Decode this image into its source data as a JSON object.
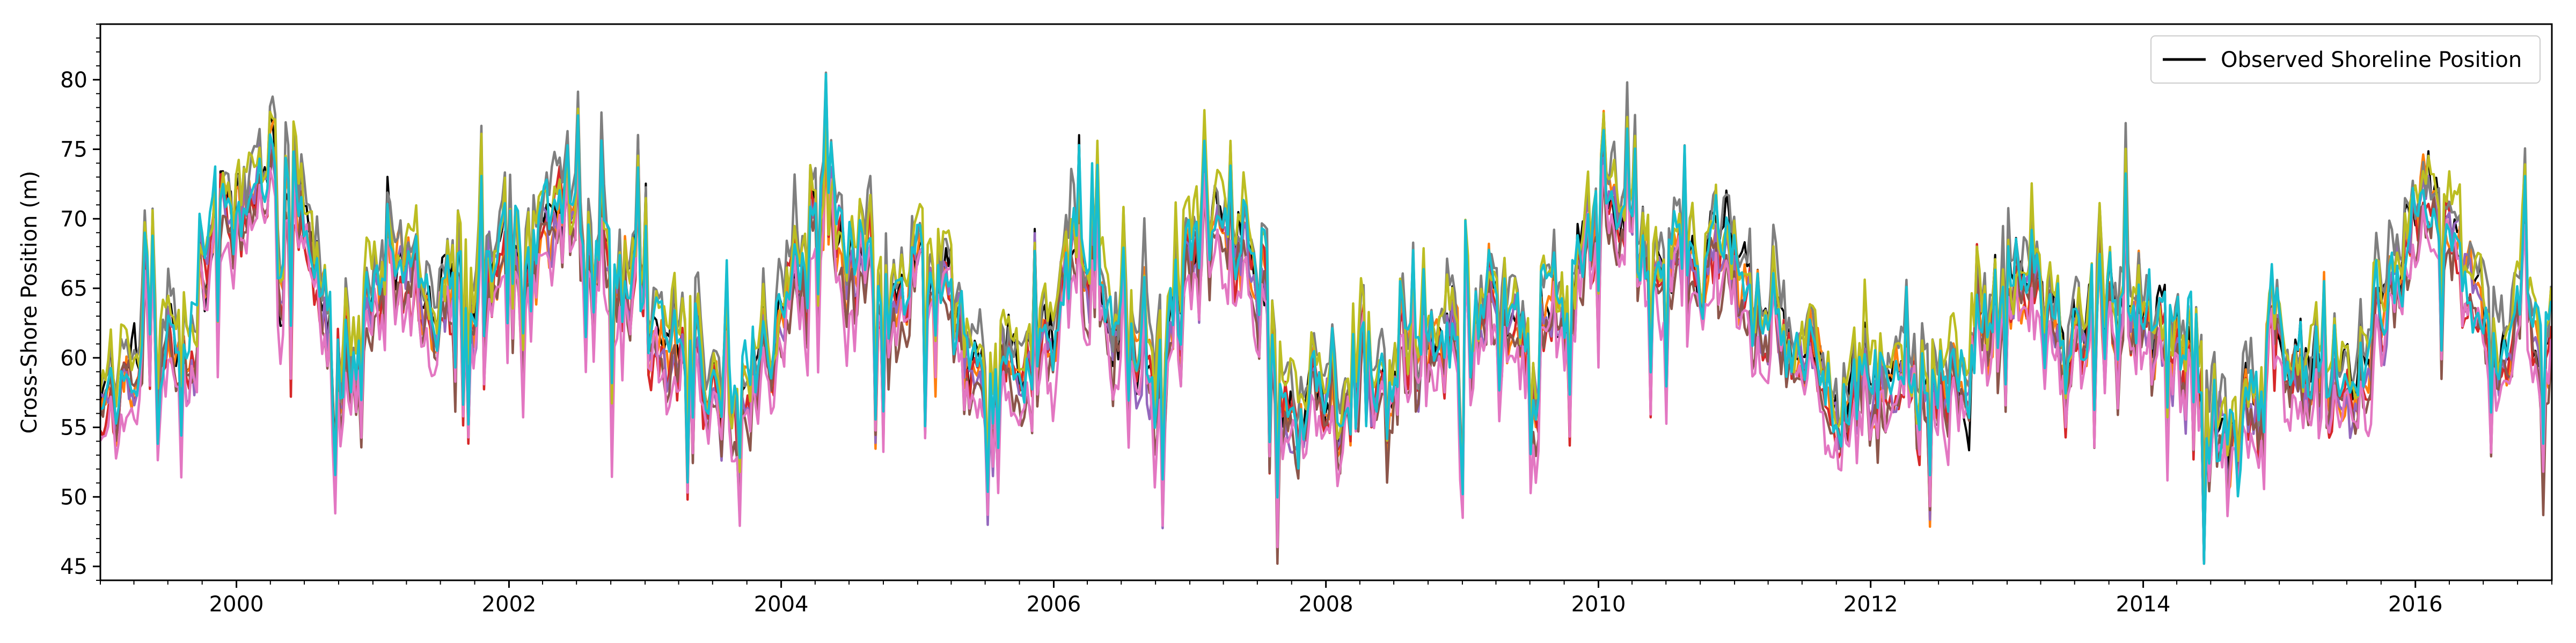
{
  "chart_data": {
    "type": "line",
    "title": "",
    "xlabel": "",
    "ylabel": "Cross-Shore Position (m)",
    "xlim": [
      "1999-01-01",
      "2017-01-01"
    ],
    "ylim": [
      44,
      84
    ],
    "x_ticks": [
      "2000",
      "2002",
      "2004",
      "2006",
      "2008",
      "2010",
      "2012",
      "2014",
      "2016"
    ],
    "y_ticks": [
      45,
      50,
      55,
      60,
      65,
      70,
      75,
      80
    ],
    "grid": false,
    "legend": {
      "placement": "top-right",
      "entries": [
        "Observed Shoreline Position"
      ]
    },
    "sampling": {
      "start": "1999-01-01",
      "step_days": 7
    },
    "series_names_visible": false,
    "series": [
      {
        "name": "Observed Shoreline Position",
        "color": "#000000"
      },
      {
        "color": "#ff7f0e"
      },
      {
        "color": "#d62728"
      },
      {
        "color": "#9467bd"
      },
      {
        "color": "#8c564b"
      },
      {
        "color": "#7f7f7f"
      },
      {
        "color": "#e377c2"
      },
      {
        "color": "#bcbd22"
      },
      {
        "color": "#17becf"
      }
    ],
    "envelope_values": {
      "description": "approximate ensemble mean shoreline position by month",
      "months": [
        "1999-01",
        "1999-04",
        "1999-07",
        "1999-10",
        "2000-01",
        "2000-04",
        "2000-07",
        "2000-10",
        "2001-01",
        "2001-04",
        "2001-07",
        "2001-10",
        "2002-01",
        "2002-04",
        "2002-07",
        "2002-10",
        "2003-01",
        "2003-04",
        "2003-07",
        "2003-10",
        "2004-01",
        "2004-04",
        "2004-07",
        "2004-10",
        "2005-01",
        "2005-04",
        "2005-07",
        "2005-10",
        "2006-01",
        "2006-04",
        "2006-07",
        "2006-10",
        "2007-01",
        "2007-04",
        "2007-07",
        "2007-10",
        "2008-01",
        "2008-04",
        "2008-07",
        "2008-10",
        "2009-01",
        "2009-04",
        "2009-07",
        "2009-10",
        "2010-01",
        "2010-04",
        "2010-07",
        "2010-10",
        "2011-01",
        "2011-04",
        "2011-07",
        "2011-10",
        "2012-01",
        "2012-04",
        "2012-07",
        "2012-10",
        "2013-01",
        "2013-04",
        "2013-07",
        "2013-10",
        "2014-01",
        "2014-04",
        "2014-07",
        "2014-10",
        "2015-01",
        "2015-04",
        "2015-07",
        "2015-10",
        "2016-01",
        "2016-04",
        "2016-07",
        "2016-10"
      ],
      "values": [
        59,
        58,
        60,
        66,
        73,
        74,
        72,
        57,
        62,
        66,
        64,
        65,
        67,
        70,
        72,
        69,
        65,
        62,
        58,
        56,
        66,
        70,
        67,
        64,
        66,
        65,
        60,
        61,
        63,
        66,
        61,
        58,
        68,
        70,
        66,
        56,
        57,
        58,
        60,
        61,
        64,
        63,
        62,
        64,
        73,
        70,
        67,
        68,
        66,
        65,
        60,
        58,
        59,
        58,
        57,
        60,
        66,
        65,
        63,
        64,
        63,
        62,
        55,
        57,
        60,
        59,
        58,
        63,
        71,
        70,
        62,
        63
      ]
    }
  }
}
